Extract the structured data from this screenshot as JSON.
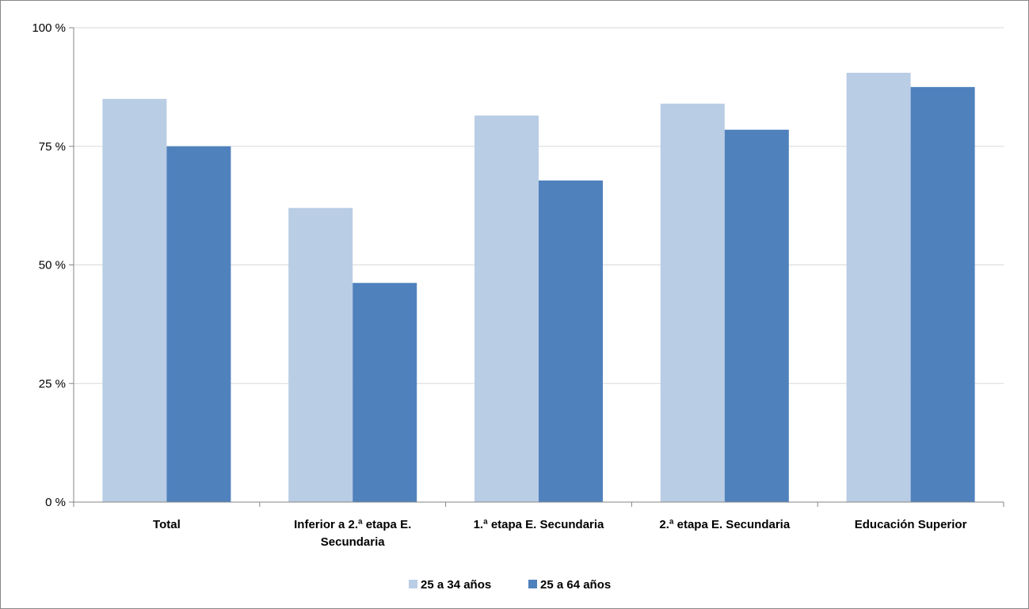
{
  "chart_data": {
    "type": "bar",
    "categories": [
      [
        "Total"
      ],
      [
        "Inferior a 2.ª etapa E.",
        "Secundaria"
      ],
      [
        "1.ª etapa E. Secundaria"
      ],
      [
        "2.ª etapa E. Secundaria"
      ],
      [
        "Educación Superior"
      ]
    ],
    "series": [
      {
        "name": "25 a 34 años",
        "color": "#b9cde5",
        "values": [
          85,
          62,
          81.5,
          84,
          90.5
        ]
      },
      {
        "name": "25 a 64 años",
        "color": "#4f81bd",
        "values": [
          75,
          46.2,
          67.8,
          78.5,
          87.5
        ]
      }
    ],
    "ylim": [
      0,
      100
    ],
    "yticks": [
      0,
      25,
      50,
      75,
      100
    ],
    "ytick_labels": [
      "0 %",
      "25 %",
      "50 %",
      "75 %",
      "100 %"
    ],
    "grid": true,
    "legend_position": "bottom"
  }
}
